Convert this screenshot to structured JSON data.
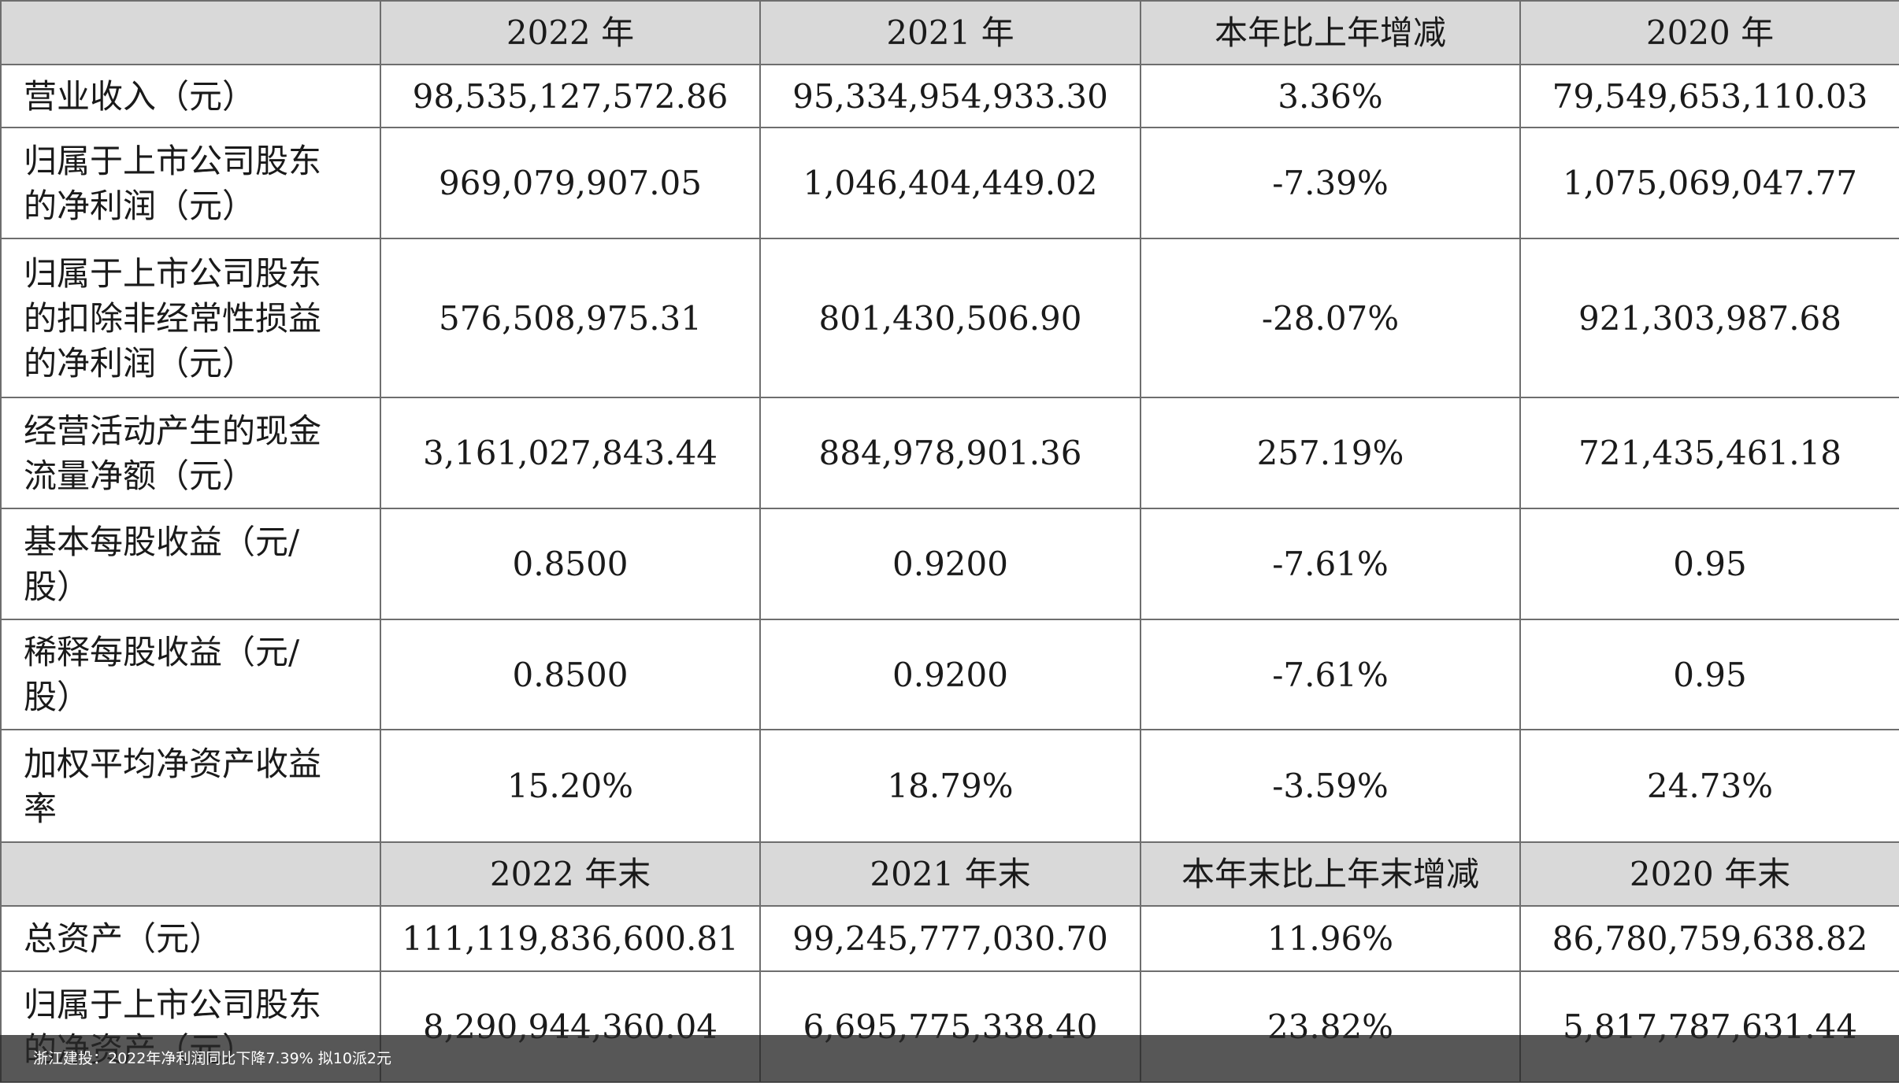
{
  "table": {
    "header1": [
      "",
      "2022 年",
      "2021 年",
      "本年比上年增减",
      "2020 年"
    ],
    "rows1": [
      {
        "label": "营业收入（元）",
        "values": [
          "98,535,127,572.86",
          "95,334,954,933.30",
          "3.36%",
          "79,549,653,110.03"
        ]
      },
      {
        "label": "归属于上市公司股东\n的净利润（元）",
        "values": [
          "969,079,907.05",
          "1,046,404,449.02",
          "-7.39%",
          "1,075,069,047.77"
        ]
      },
      {
        "label": "归属于上市公司股东\n的扣除非经常性损益\n的净利润（元）",
        "values": [
          "576,508,975.31",
          "801,430,506.90",
          "-28.07%",
          "921,303,987.68"
        ]
      },
      {
        "label": "经营活动产生的现金\n流量净额（元）",
        "values": [
          "3,161,027,843.44",
          "884,978,901.36",
          "257.19%",
          "721,435,461.18"
        ]
      },
      {
        "label": "基本每股收益（元/\n股）",
        "values": [
          "0.8500",
          "0.9200",
          "-7.61%",
          "0.95"
        ]
      },
      {
        "label": "稀释每股收益（元/\n股）",
        "values": [
          "0.8500",
          "0.9200",
          "-7.61%",
          "0.95"
        ]
      },
      {
        "label": "加权平均净资产收益\n率",
        "values": [
          "15.20%",
          "18.79%",
          "-3.59%",
          "24.73%"
        ]
      }
    ],
    "header2": [
      "",
      "2022 年末",
      "2021 年末",
      "本年末比上年末增减",
      "2020 年末"
    ],
    "rows2": [
      {
        "label": "总资产（元）",
        "values": [
          "111,119,836,600.81",
          "99,245,777,030.70",
          "11.96%",
          "86,780,759,638.82"
        ]
      },
      {
        "label": "归属于上市公司股东\n的净资产（元）",
        "values": [
          "8,290,944,360.04",
          "6,695,775,338.40",
          "23.82%",
          "5,817,787,631.44"
        ]
      }
    ]
  },
  "caption": "浙江建投：2022年净利润同比下降7.39% 拟10派2元",
  "colors": {
    "header_bg": "#d9d9d9",
    "border": "#6e6e6e",
    "caption_bg": "#282828"
  }
}
